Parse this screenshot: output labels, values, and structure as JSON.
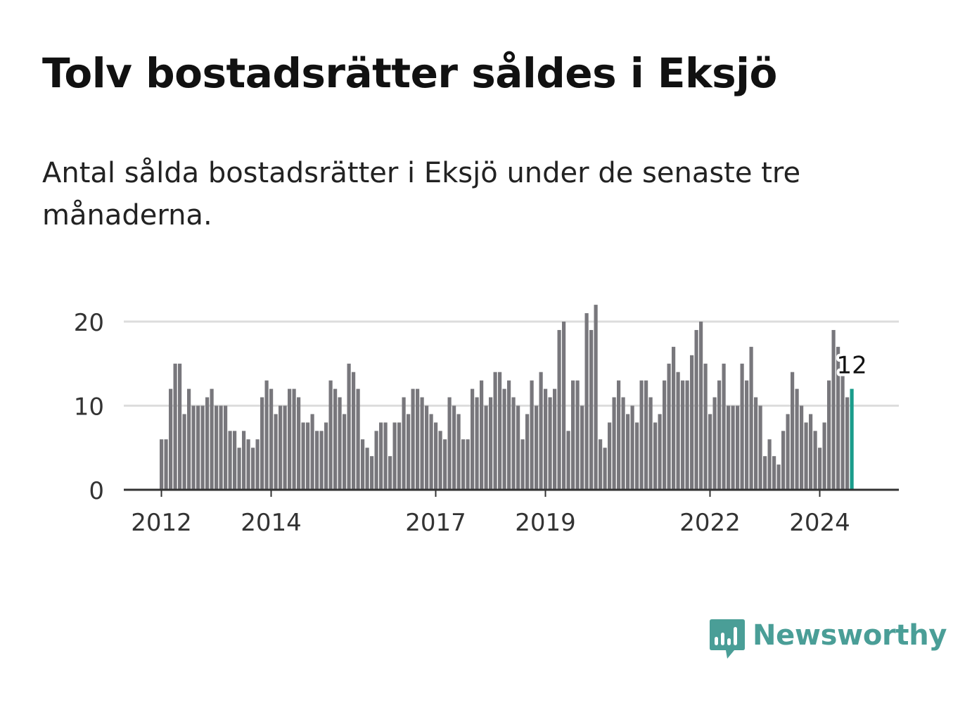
{
  "header": {
    "title": "Tolv bostadsrätter såldes i Eksjö",
    "subtitle": "Antal sålda bostadsrätter i Eksjö under de senaste tre månaderna."
  },
  "brand": {
    "name": "Newsworthy",
    "color": "#4a9e97",
    "icon": "chat-bubble-bar-chart-icon"
  },
  "colors": {
    "bar": "#78777c",
    "highlight": "#1a9c8b",
    "grid": "#dddddd",
    "axis": "#333333"
  },
  "chart_data": {
    "type": "bar",
    "title": "Tolv bostadsrätter såldes i Eksjö",
    "subtitle": "Antal sålda bostadsrätter i Eksjö under de senaste tre månaderna.",
    "xlabel": "",
    "ylabel": "",
    "x_start": "2012-01",
    "x_unit": "month",
    "ylim": [
      0,
      22
    ],
    "yticks": [
      "0",
      "10",
      "20"
    ],
    "ytick_values": [
      0,
      10,
      20
    ],
    "xticks": [
      "2012",
      "2014",
      "2017",
      "2019",
      "2022",
      "2024"
    ],
    "grid": true,
    "highlight_label": "12",
    "highlight_last": true,
    "values": [
      6,
      6,
      12,
      15,
      15,
      9,
      12,
      10,
      10,
      10,
      11,
      12,
      10,
      10,
      10,
      7,
      7,
      5,
      7,
      6,
      5,
      6,
      11,
      13,
      12,
      9,
      10,
      10,
      12,
      12,
      11,
      8,
      8,
      9,
      7,
      7,
      8,
      13,
      12,
      11,
      9,
      15,
      14,
      12,
      6,
      5,
      4,
      7,
      8,
      8,
      4,
      8,
      8,
      11,
      9,
      12,
      12,
      11,
      10,
      9,
      8,
      7,
      6,
      11,
      10,
      9,
      6,
      6,
      12,
      11,
      13,
      10,
      11,
      14,
      14,
      12,
      13,
      11,
      10,
      6,
      9,
      13,
      10,
      14,
      12,
      11,
      12,
      19,
      20,
      7,
      13,
      13,
      10,
      21,
      19,
      22,
      6,
      5,
      8,
      11,
      13,
      11,
      9,
      10,
      8,
      13,
      13,
      11,
      8,
      9,
      13,
      15,
      17,
      14,
      13,
      13,
      16,
      19,
      20,
      15,
      9,
      11,
      13,
      15,
      10,
      10,
      10,
      15,
      13,
      17,
      11,
      10,
      4,
      6,
      4,
      3,
      7,
      9,
      14,
      12,
      10,
      8,
      9,
      7,
      5,
      8,
      13,
      19,
      17,
      14,
      11,
      12
    ]
  }
}
